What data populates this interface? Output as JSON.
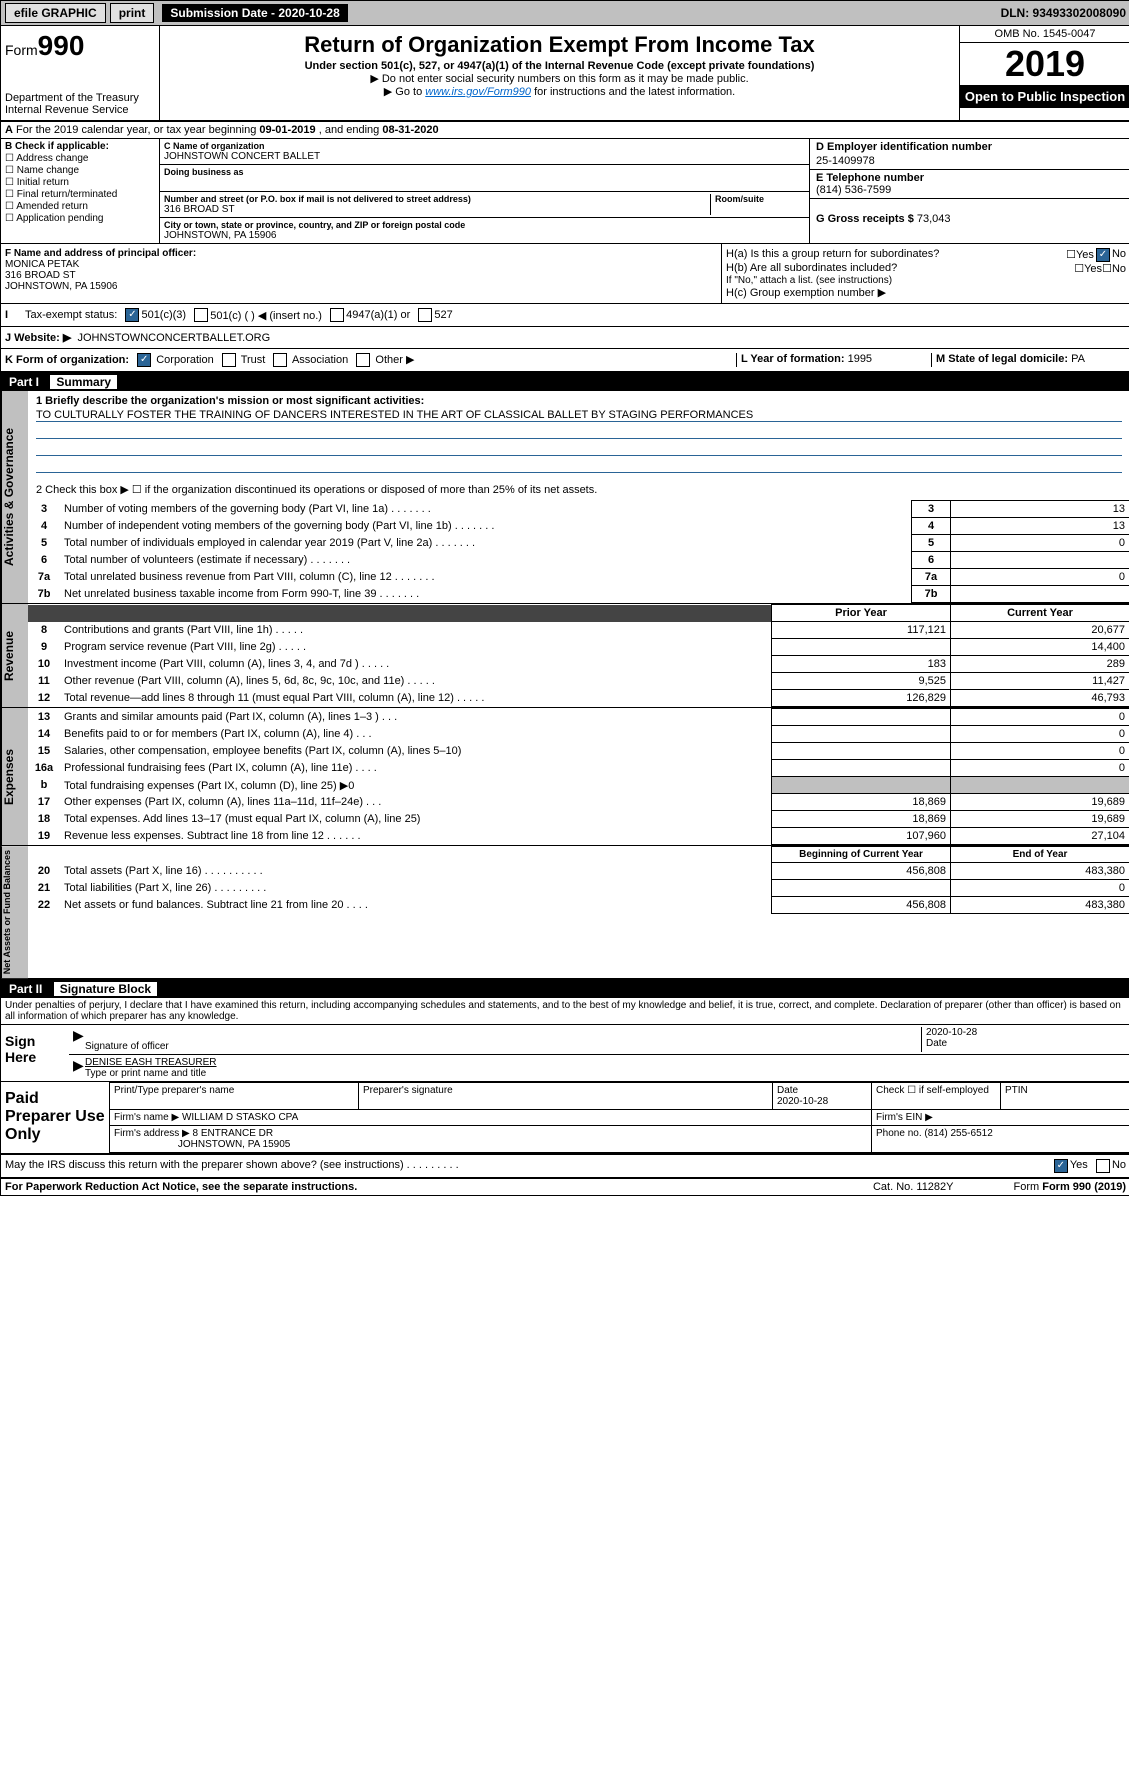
{
  "topbar": {
    "efile": "efile GRAPHIC",
    "print": "print",
    "submission_label": "Submission Date - 2020-10-28",
    "dln": "DLN: 93493302008090"
  },
  "header": {
    "form_prefix": "Form",
    "form_number": "990",
    "dept": "Department of the Treasury",
    "irs": "Internal Revenue Service",
    "title": "Return of Organization Exempt From Income Tax",
    "subtitle": "Under section 501(c), 527, or 4947(a)(1) of the Internal Revenue Code (except private foundations)",
    "note1": "▶ Do not enter social security numbers on this form as it may be made public.",
    "note2_pre": "▶ Go to ",
    "note2_link": "www.irs.gov/Form990",
    "note2_post": " for instructions and the latest information.",
    "omb": "OMB No. 1545-0047",
    "year": "2019",
    "open": "Open to Public Inspection"
  },
  "sectionA": {
    "text_pre": "For the 2019 calendar year, or tax year beginning ",
    "begin": "09-01-2019",
    "mid": " , and ending ",
    "end": "08-31-2020"
  },
  "sectionB": {
    "label": "B Check if applicable:",
    "items": [
      "Address change",
      "Name change",
      "Initial return",
      "Final return/terminated",
      "Amended return",
      "Application pending"
    ]
  },
  "sectionC": {
    "name_label": "C Name of organization",
    "name": "JOHNSTOWN CONCERT BALLET",
    "dba_label": "Doing business as",
    "street_label": "Number and street (or P.O. box if mail is not delivered to street address)",
    "room_label": "Room/suite",
    "street": "316 BROAD ST",
    "city_label": "City or town, state or province, country, and ZIP or foreign postal code",
    "city": "JOHNSTOWN, PA  15906"
  },
  "sectionD": {
    "label": "D Employer identification number",
    "value": "25-1409978"
  },
  "sectionE": {
    "label": "E Telephone number",
    "value": "(814) 536-7599"
  },
  "sectionG": {
    "label": "G Gross receipts $",
    "value": "73,043"
  },
  "sectionF": {
    "label": "F  Name and address of principal officer:",
    "name": "MONICA PETAK",
    "street": "316 BROAD ST",
    "city": "JOHNSTOWN, PA  15906"
  },
  "sectionH": {
    "a": "H(a)  Is this a group return for subordinates?",
    "b": "H(b)  Are all subordinates included?",
    "b_note": "If \"No,\" attach a list. (see instructions)",
    "c": "H(c)  Group exemption number ▶",
    "yes": "Yes",
    "no": "No"
  },
  "taxstatus": {
    "label": "Tax-exempt status:",
    "opt1": "501(c)(3)",
    "opt2": "501(c) (   ) ◀ (insert no.)",
    "opt3": "4947(a)(1) or",
    "opt4": "527"
  },
  "sectionJ": {
    "label": "J   Website: ▶",
    "value": "JOHNSTOWNCONCERTBALLET.ORG"
  },
  "sectionK": {
    "label": "K Form of organization:",
    "corp": "Corporation",
    "trust": "Trust",
    "assoc": "Association",
    "other": "Other ▶"
  },
  "sectionL": {
    "label": "L Year of formation:",
    "value": "1995"
  },
  "sectionM": {
    "label": "M State of legal domicile:",
    "value": "PA"
  },
  "part1": {
    "hdr": "Part I",
    "title": "Summary",
    "line1_label": "1  Briefly describe the organization's mission or most significant activities:",
    "mission": "TO CULTURALLY FOSTER THE TRAINING OF DANCERS INTERESTED IN THE ART OF CLASSICAL BALLET BY STAGING PERFORMANCES",
    "line2": "2   Check this box ▶ ☐  if the organization discontinued its operations or disposed of more than 25% of its net assets.",
    "rows_gov": [
      {
        "n": "3",
        "desc": "Number of voting members of the governing body (Part VI, line 1a)",
        "val": "13"
      },
      {
        "n": "4",
        "desc": "Number of independent voting members of the governing body (Part VI, line 1b)",
        "val": "13"
      },
      {
        "n": "5",
        "desc": "Total number of individuals employed in calendar year 2019 (Part V, line 2a)",
        "val": "0"
      },
      {
        "n": "6",
        "desc": "Total number of volunteers (estimate if necessary)",
        "val": ""
      },
      {
        "n": "7a",
        "desc": "Total unrelated business revenue from Part VIII, column (C), line 12",
        "val": "0"
      },
      {
        "n": "7b",
        "desc": "Net unrelated business taxable income from Form 990-T, line 39",
        "val": ""
      }
    ],
    "col_prior": "Prior Year",
    "col_current": "Current Year",
    "rows_rev": [
      {
        "n": "8",
        "desc": "Contributions and grants (Part VIII, line 1h)",
        "prior": "117,121",
        "curr": "20,677"
      },
      {
        "n": "9",
        "desc": "Program service revenue (Part VIII, line 2g)",
        "prior": "",
        "curr": "14,400"
      },
      {
        "n": "10",
        "desc": "Investment income (Part VIII, column (A), lines 3, 4, and 7d )",
        "prior": "183",
        "curr": "289"
      },
      {
        "n": "11",
        "desc": "Other revenue (Part VIII, column (A), lines 5, 6d, 8c, 9c, 10c, and 11e)",
        "prior": "9,525",
        "curr": "11,427"
      },
      {
        "n": "12",
        "desc": "Total revenue—add lines 8 through 11 (must equal Part VIII, column (A), line 12)",
        "prior": "126,829",
        "curr": "46,793"
      }
    ],
    "rows_exp": [
      {
        "n": "13",
        "desc": "Grants and similar amounts paid (Part IX, column (A), lines 1–3 )   .    .    .",
        "prior": "",
        "curr": "0"
      },
      {
        "n": "14",
        "desc": "Benefits paid to or for members (Part IX, column (A), line 4)  .    .    .",
        "prior": "",
        "curr": "0"
      },
      {
        "n": "15",
        "desc": "Salaries, other compensation, employee benefits (Part IX, column (A), lines 5–10)",
        "prior": "",
        "curr": "0"
      },
      {
        "n": "16a",
        "desc": "Professional fundraising fees (Part IX, column (A), line 11e)  .    .    .    .",
        "prior": "",
        "curr": "0"
      },
      {
        "n": "b",
        "desc": "Total fundraising expenses (Part IX, column (D), line 25) ▶0",
        "prior": "—shade—",
        "curr": "—shade—"
      },
      {
        "n": "17",
        "desc": "Other expenses (Part IX, column (A), lines 11a–11d, 11f–24e)  .    .    .",
        "prior": "18,869",
        "curr": "19,689"
      },
      {
        "n": "18",
        "desc": "Total expenses. Add lines 13–17 (must equal Part IX, column (A), line 25)",
        "prior": "18,869",
        "curr": "19,689"
      },
      {
        "n": "19",
        "desc": "Revenue less expenses. Subtract line 18 from line 12  .    .    .    .    .    .",
        "prior": "107,960",
        "curr": "27,104"
      }
    ],
    "col_begin": "Beginning of Current Year",
    "col_end": "End of Year",
    "rows_net": [
      {
        "n": "20",
        "desc": "Total assets (Part X, line 16)  .    .    .    .    .    .    .    .    .    .",
        "prior": "456,808",
        "curr": "483,380"
      },
      {
        "n": "21",
        "desc": "Total liabilities (Part X, line 26)  .    .    .    .    .    .    .    .    .",
        "prior": "",
        "curr": "0"
      },
      {
        "n": "22",
        "desc": "Net assets or fund balances. Subtract line 21 from line 20  .    .    .    .",
        "prior": "456,808",
        "curr": "483,380"
      }
    ],
    "vlabels": {
      "gov": "Activities & Governance",
      "rev": "Revenue",
      "exp": "Expenses",
      "net": "Net Assets or Fund Balances"
    }
  },
  "part2": {
    "hdr": "Part II",
    "title": "Signature Block",
    "decl": "Under penalties of perjury, I declare that I have examined this return, including accompanying schedules and statements, and to the best of my knowledge and belief, it is true, correct, and complete. Declaration of preparer (other than officer) is based on all information of which preparer has any knowledge.",
    "sign_here": "Sign Here",
    "sig_officer": "Signature of officer",
    "date": "2020-10-28",
    "date_label": "Date",
    "officer_name": "DENISE EASH  TREASURER",
    "type_label": "Type or print name and title",
    "paid": "Paid Preparer Use Only",
    "prep_name_label": "Print/Type preparer's name",
    "prep_sig_label": "Preparer's signature",
    "prep_date_label": "Date",
    "prep_date": "2020-10-28",
    "check_self": "Check ☐ if self-employed",
    "ptin": "PTIN",
    "firm_name_label": "Firm's name    ▶",
    "firm_name": "WILLIAM D STASKO CPA",
    "firm_ein": "Firm's EIN ▶",
    "firm_addr_label": "Firm's address ▶",
    "firm_addr": "8 ENTRANCE DR",
    "firm_city": "JOHNSTOWN, PA  15905",
    "phone": "Phone no. (814) 255-6512",
    "discuss": "May the IRS discuss this return with the preparer shown above? (see instructions)   .    .    .    .    .    .    .    .    .",
    "yes": "Yes",
    "no": "No"
  },
  "footer": {
    "pra": "For Paperwork Reduction Act Notice, see the separate instructions.",
    "cat": "Cat. No. 11282Y",
    "form": "Form 990 (2019)"
  },
  "colors": {
    "link": "#0066cc",
    "checked": "#2a6496",
    "underline": "#2a6496",
    "shade": "#c0c0c0"
  }
}
